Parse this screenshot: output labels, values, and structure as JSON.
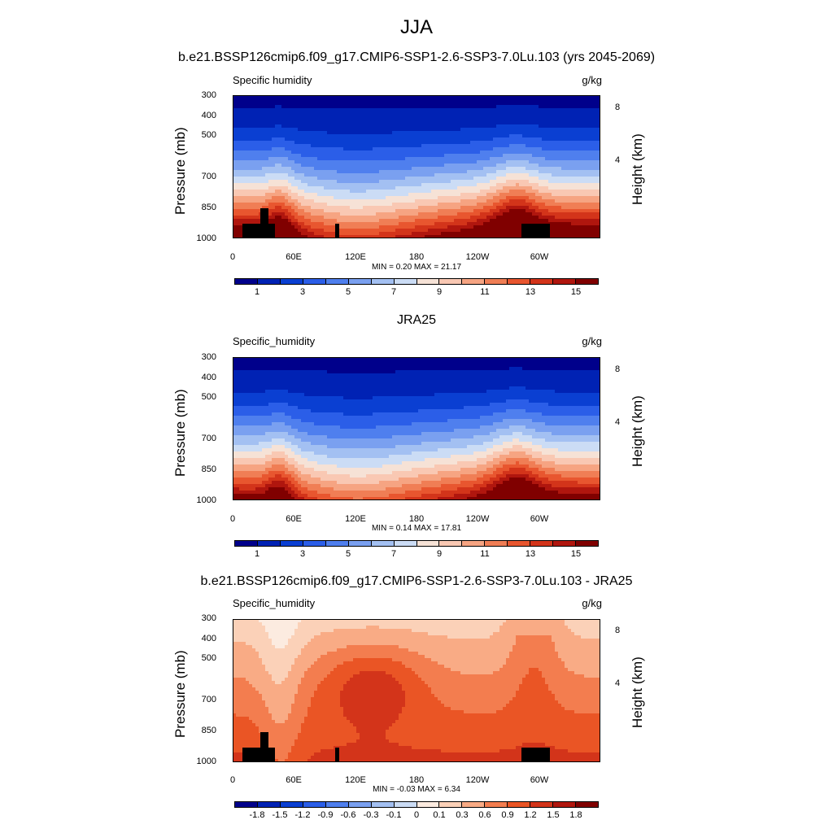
{
  "title": "JJA",
  "colors": {
    "seq": [
      "#00008b",
      "#0022b4",
      "#0a3fd2",
      "#2b5ee8",
      "#4f7fee",
      "#7aa0f0",
      "#a3c0f2",
      "#cbdcf5",
      "#f6e2d6",
      "#f9c8b3",
      "#f6a482",
      "#f07e55",
      "#e8562f",
      "#d3341a",
      "#b0160e",
      "#800000"
    ],
    "diff": [
      "#00008b",
      "#0022b4",
      "#0a3fd2",
      "#2b5ee8",
      "#4f7fee",
      "#7aa0f0",
      "#a3c0f2",
      "#cbdcf5",
      "#fcebe0",
      "#fbd1b8",
      "#f9ab85",
      "#f37d4f",
      "#ea5525",
      "#d3341a",
      "#b0160e",
      "#800000"
    ]
  },
  "chart_data": [
    {
      "type": "heatmap",
      "title": "b.e21.BSSP126cmip6.f09_g17.CMIP6-SSP1-2.6-SSP3-7.0Lu.103 (yrs 2045-2069)",
      "variable": "Specific humidity",
      "units": "g/kg",
      "ylabel": "Pressure (mb)",
      "y2label": "Height (km)",
      "yticks": [
        "300",
        "400",
        "500",
        "700",
        "850",
        "1000"
      ],
      "y2ticks": [
        "8",
        "4"
      ],
      "xticks": [
        "0",
        "60E",
        "120E",
        "180",
        "120W",
        "60W"
      ],
      "stats": "MIN =   0.20  MAX =  21.17",
      "min": 0.2,
      "max": 21.17,
      "colorbar_labels": [
        "1",
        "3",
        "5",
        "7",
        "9",
        "11",
        "13",
        "15"
      ],
      "palette": "seq",
      "field_kind": "abs",
      "surface_max": 17.5,
      "has_topography": true
    },
    {
      "type": "heatmap",
      "title": "JRA25",
      "variable": "Specific_humidity",
      "units": "g/kg",
      "ylabel": "Pressure (mb)",
      "y2label": "Height (km)",
      "yticks": [
        "300",
        "400",
        "500",
        "700",
        "850",
        "1000"
      ],
      "y2ticks": [
        "8",
        "4"
      ],
      "xticks": [
        "0",
        "60E",
        "120E",
        "180",
        "120W",
        "60W"
      ],
      "stats": "MIN =   0.14  MAX =  17.81",
      "min": 0.14,
      "max": 17.81,
      "colorbar_labels": [
        "1",
        "3",
        "5",
        "7",
        "9",
        "11",
        "13",
        "15"
      ],
      "palette": "seq",
      "field_kind": "abs",
      "surface_max": 15.8,
      "has_topography": false
    },
    {
      "type": "heatmap",
      "title": "b.e21.BSSP126cmip6.f09_g17.CMIP6-SSP1-2.6-SSP3-7.0Lu.103 - JRA25",
      "variable": "Specific_humidity",
      "units": "g/kg",
      "ylabel": "Pressure (mb)",
      "y2label": "Height (km)",
      "yticks": [
        "300",
        "400",
        "500",
        "700",
        "850",
        "1000"
      ],
      "y2ticks": [
        "8",
        "4"
      ],
      "xticks": [
        "0",
        "60E",
        "120E",
        "180",
        "120W",
        "60W"
      ],
      "stats": "MIN =  -0.03  MAX =   6.34",
      "min": -0.03,
      "max": 6.34,
      "colorbar_labels": [
        "-1.8",
        "-1.5",
        "-1.2",
        "-0.9",
        "-0.6",
        "-0.3",
        "-0.1",
        "0",
        "0.1",
        "0.3",
        "0.6",
        "0.9",
        "1.2",
        "1.5",
        "1.8"
      ],
      "palette": "diff",
      "field_kind": "diff",
      "has_topography": true
    }
  ]
}
